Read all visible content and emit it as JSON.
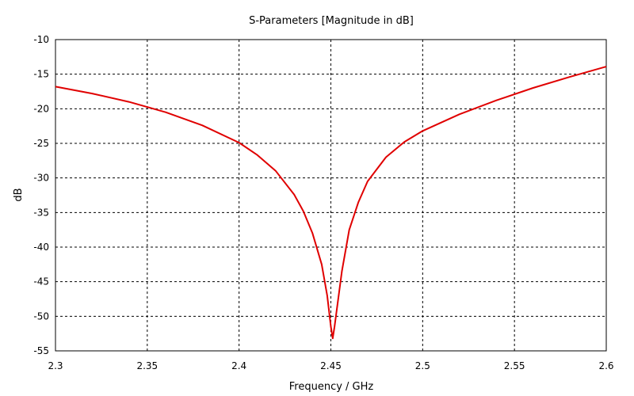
{
  "chart_data": {
    "type": "line",
    "title": "S-Parameters [Magnitude in dB]",
    "xlabel": "Frequency / GHz",
    "ylabel": "dB",
    "xlim": [
      2.3,
      2.6
    ],
    "ylim": [
      -55,
      -10
    ],
    "xticks": [
      "2.3",
      "2.35",
      "2.4",
      "2.45",
      "2.5",
      "2.55",
      "2.6"
    ],
    "yticks": [
      "-10",
      "-15",
      "-20",
      "-25",
      "-30",
      "-35",
      "-40",
      "-45",
      "-50",
      "-55"
    ],
    "grid": true,
    "line_color": "#e00000",
    "series": [
      {
        "x": [
          2.3,
          2.32,
          2.34,
          2.36,
          2.38,
          2.4,
          2.41,
          2.42,
          2.43,
          2.435,
          2.44,
          2.445,
          2.448,
          2.45,
          2.451,
          2.452,
          2.454,
          2.456,
          2.46,
          2.465,
          2.47,
          2.48,
          2.49,
          2.5,
          2.52,
          2.54,
          2.56,
          2.58,
          2.6
        ],
        "y": [
          -16.8,
          -17.8,
          -19.0,
          -20.5,
          -22.4,
          -24.9,
          -26.7,
          -29.0,
          -32.4,
          -34.8,
          -38.0,
          -42.5,
          -47.0,
          -51.5,
          -53.2,
          -51.5,
          -47.5,
          -43.5,
          -37.5,
          -33.5,
          -30.5,
          -27.0,
          -24.8,
          -23.2,
          -20.8,
          -18.8,
          -17.0,
          -15.4,
          -13.9
        ]
      }
    ]
  }
}
